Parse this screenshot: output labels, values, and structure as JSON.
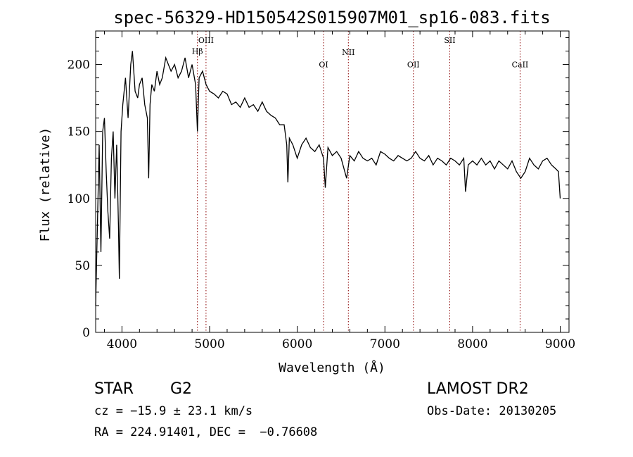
{
  "chart_data": {
    "type": "line",
    "title": "spec-56329-HD150542S015907M01_sp16-083.fits",
    "xlabel": "Wavelength (Å)",
    "ylabel": "Flux (relative)",
    "xlim": [
      3700,
      9100
    ],
    "ylim": [
      0,
      225
    ],
    "xticks": [
      4000,
      5000,
      6000,
      7000,
      8000,
      9000
    ],
    "yticks": [
      0,
      50,
      100,
      150,
      200
    ],
    "grid": false,
    "series": [
      {
        "x": [
          3700,
          3720,
          3740,
          3760,
          3780,
          3800,
          3820,
          3840,
          3860,
          3880,
          3900,
          3920,
          3940,
          3960,
          3970,
          3990,
          4010,
          4040,
          4070,
          4100,
          4120,
          4150,
          4180,
          4200,
          4230,
          4260,
          4290,
          4305,
          4320,
          4340,
          4370,
          4400,
          4430,
          4460,
          4500,
          4530,
          4560,
          4600,
          4640,
          4680,
          4720,
          4760,
          4800,
          4840,
          4861,
          4880,
          4920,
          4960,
          5000,
          5050,
          5100,
          5150,
          5200,
          5250,
          5300,
          5350,
          5400,
          5450,
          5500,
          5550,
          5600,
          5650,
          5700,
          5750,
          5800,
          5850,
          5880,
          5893,
          5910,
          5950,
          6000,
          6050,
          6100,
          6150,
          6200,
          6250,
          6300,
          6320,
          6350,
          6400,
          6450,
          6500,
          6563,
          6600,
          6650,
          6700,
          6750,
          6800,
          6850,
          6900,
          6950,
          7000,
          7050,
          7100,
          7150,
          7200,
          7250,
          7300,
          7350,
          7400,
          7450,
          7500,
          7550,
          7600,
          7650,
          7700,
          7750,
          7800,
          7850,
          7900,
          7920,
          7950,
          8000,
          8050,
          8100,
          8150,
          8200,
          8250,
          8300,
          8350,
          8400,
          8450,
          8500,
          8550,
          8600,
          8650,
          8700,
          8750,
          8800,
          8850,
          8900,
          8950,
          8980,
          9000
        ],
        "values": [
          20,
          80,
          140,
          60,
          150,
          160,
          120,
          90,
          70,
          130,
          150,
          100,
          140,
          80,
          40,
          150,
          170,
          190,
          160,
          200,
          210,
          180,
          175,
          185,
          190,
          170,
          160,
          115,
          170,
          185,
          180,
          195,
          185,
          190,
          205,
          200,
          195,
          200,
          190,
          195,
          205,
          190,
          200,
          185,
          150,
          190,
          195,
          185,
          180,
          178,
          175,
          180,
          178,
          170,
          172,
          168,
          175,
          168,
          170,
          165,
          172,
          165,
          162,
          160,
          155,
          155,
          140,
          112,
          145,
          140,
          130,
          140,
          145,
          138,
          135,
          140,
          130,
          108,
          138,
          132,
          135,
          130,
          115,
          132,
          128,
          135,
          130,
          128,
          130,
          125,
          135,
          133,
          130,
          128,
          132,
          130,
          128,
          130,
          135,
          130,
          128,
          132,
          125,
          130,
          128,
          125,
          130,
          128,
          125,
          130,
          105,
          125,
          128,
          125,
          130,
          125,
          128,
          122,
          128,
          125,
          122,
          128,
          120,
          115,
          120,
          130,
          125,
          122,
          128,
          130,
          125,
          122,
          120,
          100
        ]
      }
    ],
    "lines": [
      {
        "label": "Hβ",
        "x": 4861,
        "label_y": 208
      },
      {
        "label": "OIII",
        "x": 4959,
        "label_y": 216
      },
      {
        "label": "OI",
        "x": 6300,
        "label_y": 198
      },
      {
        "label": "NII",
        "x": 6583,
        "label_y": 207
      },
      {
        "label": "OII",
        "x": 7325,
        "label_y": 198
      },
      {
        "label": "SII",
        "x": 7740,
        "label_y": 216
      },
      {
        "label": "CaII",
        "x": 8542,
        "label_y": 198
      }
    ],
    "line_color": "#8b0000"
  },
  "footer": {
    "object_class": "STAR",
    "subclass": "G2",
    "survey": "LAMOST DR2",
    "cz": "cz = −15.9 ± 23.1 km/s",
    "obs_date": "Obs-Date: 20130205",
    "coords": "RA = 224.91401, DEC =  −0.76608"
  }
}
